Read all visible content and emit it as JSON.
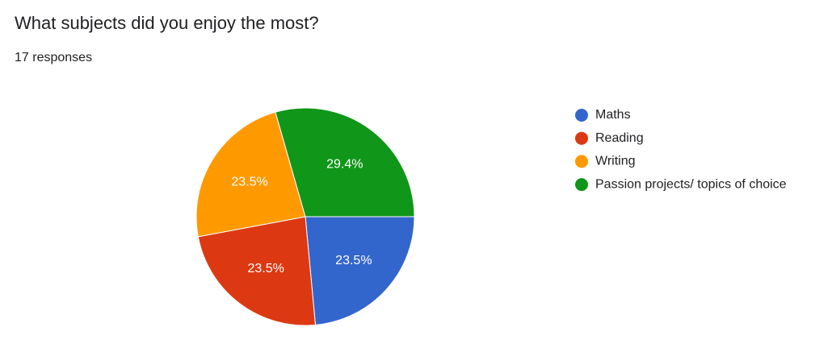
{
  "chart_data": {
    "type": "pie",
    "title": "What subjects did you enjoy the most?",
    "subtitle": "17 responses",
    "categories": [
      "Maths",
      "Reading",
      "Writing",
      "Passion projects/ topics of choice"
    ],
    "values": [
      23.5,
      23.5,
      23.5,
      29.4
    ],
    "value_labels": [
      "23.5%",
      "23.5%",
      "23.5%",
      "29.4%"
    ],
    "colors": [
      "#3366cc",
      "#dc3912",
      "#ff9900",
      "#109618"
    ],
    "legend": "right"
  }
}
